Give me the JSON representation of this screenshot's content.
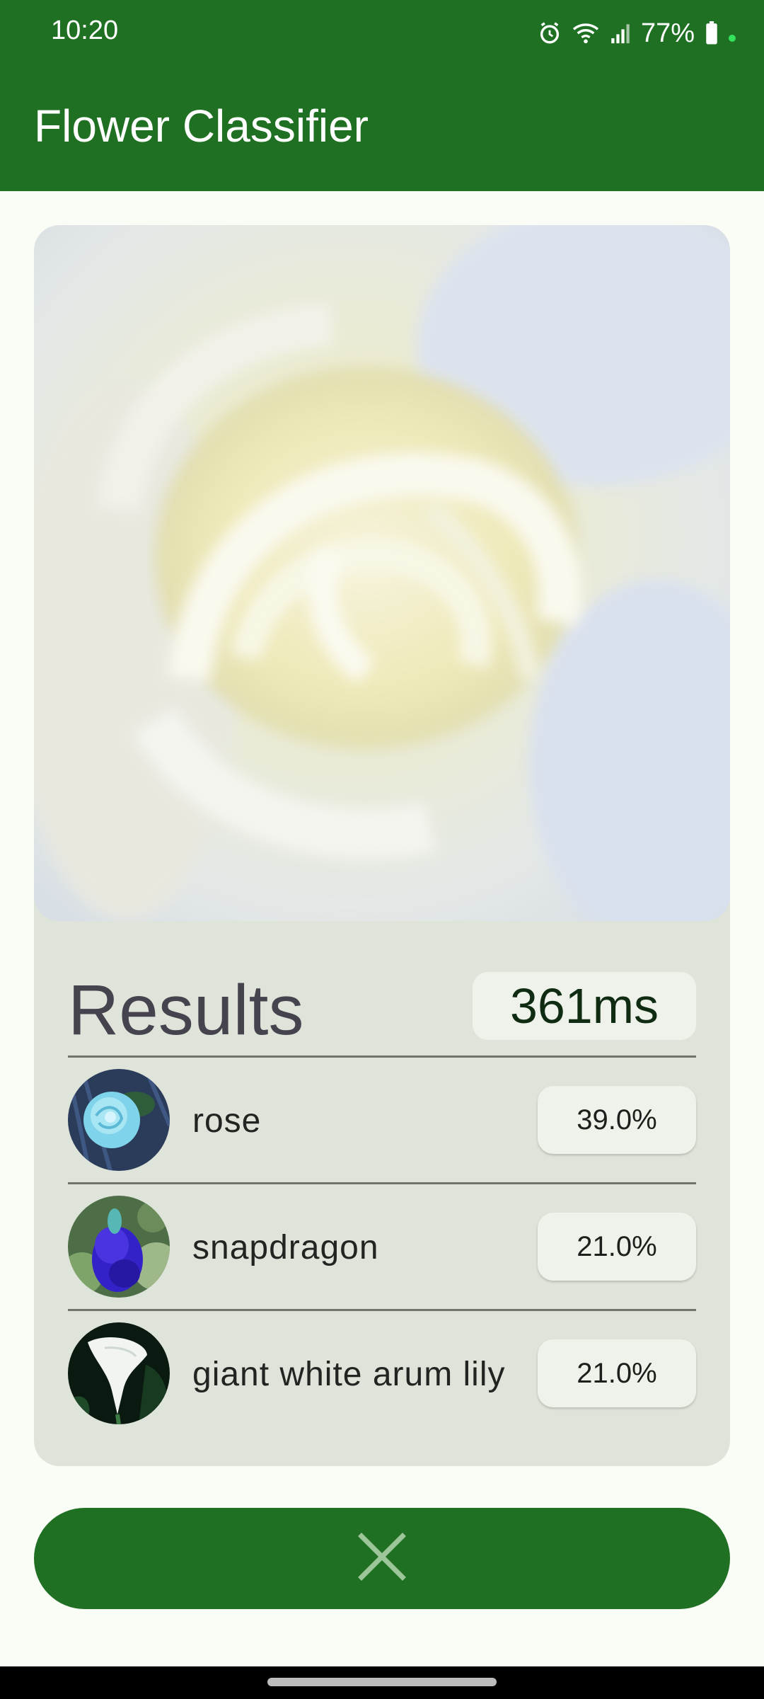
{
  "status_bar": {
    "time": "10:20",
    "battery": "77%",
    "icons": [
      "alarm-icon",
      "wifi-icon",
      "signal-icon",
      "battery-icon"
    ]
  },
  "app_bar": {
    "title": "Flower Classifier"
  },
  "results": {
    "title": "Results",
    "inference_time": "361ms",
    "items": [
      {
        "label": "rose",
        "confidence": "39.0%"
      },
      {
        "label": "snapdragon",
        "confidence": "21.0%"
      },
      {
        "label": "giant white arum lily",
        "confidence": "21.0%"
      }
    ]
  },
  "actions": {
    "close_icon": "close-icon"
  },
  "colors": {
    "primary": "#1f7023",
    "card": "#dfe4da",
    "chip": "#eef2ea",
    "background": "#fafcf6"
  }
}
